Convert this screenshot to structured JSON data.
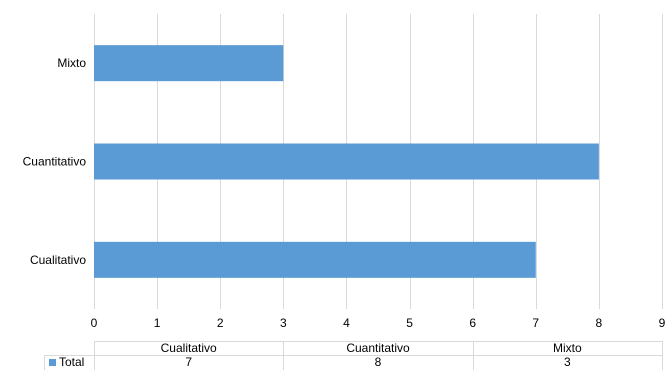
{
  "chart_data": {
    "type": "bar",
    "orientation": "horizontal",
    "categories": [
      "Cualitativo",
      "Cuantitativo",
      "Mixto"
    ],
    "series": [
      {
        "name": "Total",
        "values": [
          7,
          8,
          3
        ]
      }
    ],
    "xlim": [
      0,
      9
    ],
    "x_ticks": [
      "0",
      "1",
      "2",
      "3",
      "4",
      "5",
      "6",
      "7",
      "8",
      "9"
    ],
    "grid": true,
    "data_table": true,
    "colors": {
      "bar": "#5b9bd5",
      "grid": "#d9d9d9",
      "table_border": "#d9d9d9"
    }
  }
}
